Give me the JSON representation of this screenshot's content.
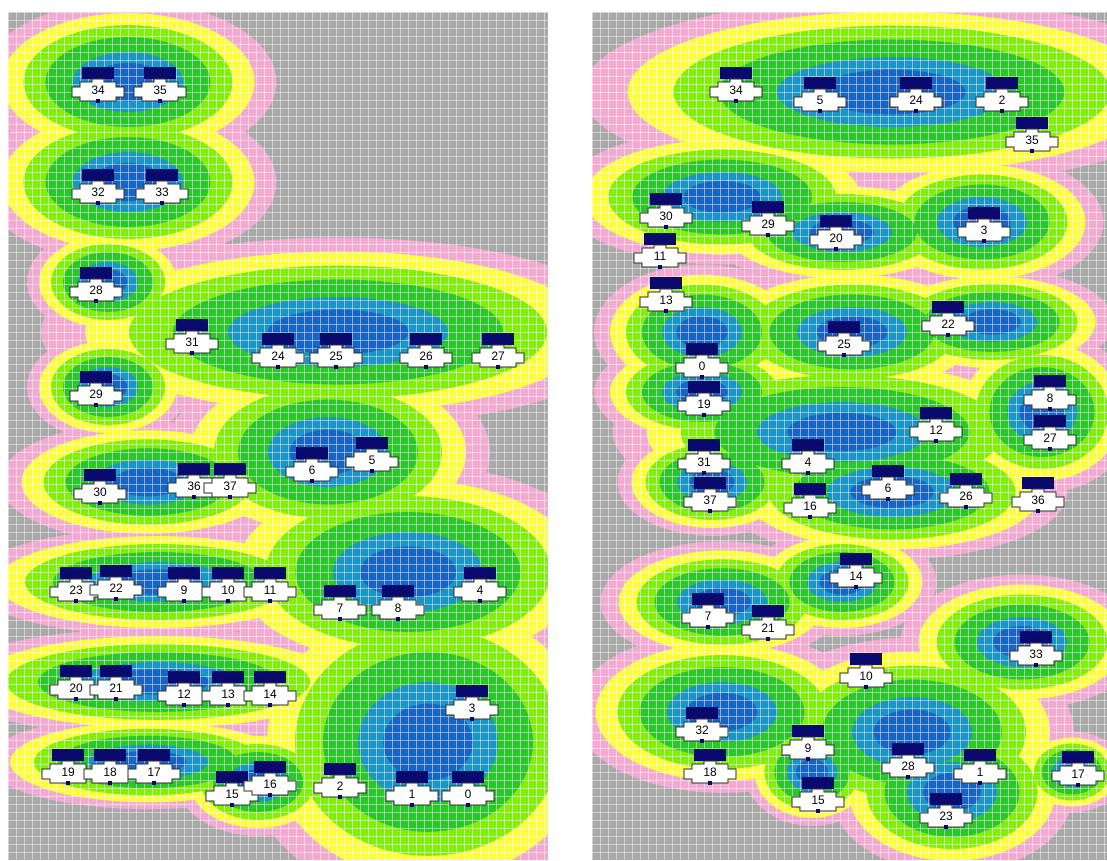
{
  "colors": {
    "background": "#a9a9a9",
    "pink": "#f7a8d2",
    "yellow": "#ffff33",
    "lightgreen": "#7ef200",
    "green": "#22cc22",
    "cyan": "#1199cc",
    "blue": "#1166cc",
    "navy": "#0a0a6e",
    "unit_fill": "#ffffff",
    "unit_stroke": "#333333"
  },
  "left_panel": {
    "units": [
      {
        "label": "34"
      },
      {
        "label": "35"
      },
      {
        "label": "32"
      },
      {
        "label": "33"
      },
      {
        "label": "28"
      },
      {
        "label": "31"
      },
      {
        "label": "24"
      },
      {
        "label": "25"
      },
      {
        "label": "26"
      },
      {
        "label": "27"
      },
      {
        "label": "29"
      },
      {
        "label": "6"
      },
      {
        "label": "5"
      },
      {
        "label": "30"
      },
      {
        "label": "36"
      },
      {
        "label": "37"
      },
      {
        "label": "23"
      },
      {
        "label": "22"
      },
      {
        "label": "9"
      },
      {
        "label": "10"
      },
      {
        "label": "11"
      },
      {
        "label": "7"
      },
      {
        "label": "8"
      },
      {
        "label": "4"
      },
      {
        "label": "20"
      },
      {
        "label": "21"
      },
      {
        "label": "12"
      },
      {
        "label": "13"
      },
      {
        "label": "14"
      },
      {
        "label": "3"
      },
      {
        "label": "19"
      },
      {
        "label": "18"
      },
      {
        "label": "17"
      },
      {
        "label": "15"
      },
      {
        "label": "16"
      },
      {
        "label": "2"
      },
      {
        "label": "1"
      },
      {
        "label": "0"
      }
    ]
  },
  "right_panel": {
    "units": [
      {
        "label": "34"
      },
      {
        "label": "5"
      },
      {
        "label": "24"
      },
      {
        "label": "2"
      },
      {
        "label": "35"
      },
      {
        "label": "30"
      },
      {
        "label": "29"
      },
      {
        "label": "20"
      },
      {
        "label": "3"
      },
      {
        "label": "11"
      },
      {
        "label": "13"
      },
      {
        "label": "22"
      },
      {
        "label": "25"
      },
      {
        "label": "0"
      },
      {
        "label": "19"
      },
      {
        "label": "8"
      },
      {
        "label": "12"
      },
      {
        "label": "27"
      },
      {
        "label": "31"
      },
      {
        "label": "4"
      },
      {
        "label": "6"
      },
      {
        "label": "37"
      },
      {
        "label": "16"
      },
      {
        "label": "26"
      },
      {
        "label": "36"
      },
      {
        "label": "14"
      },
      {
        "label": "7"
      },
      {
        "label": "21"
      },
      {
        "label": "33"
      },
      {
        "label": "10"
      },
      {
        "label": "32"
      },
      {
        "label": "9"
      },
      {
        "label": "18"
      },
      {
        "label": "28"
      },
      {
        "label": "1"
      },
      {
        "label": "17"
      },
      {
        "label": "15"
      },
      {
        "label": "23"
      }
    ]
  }
}
